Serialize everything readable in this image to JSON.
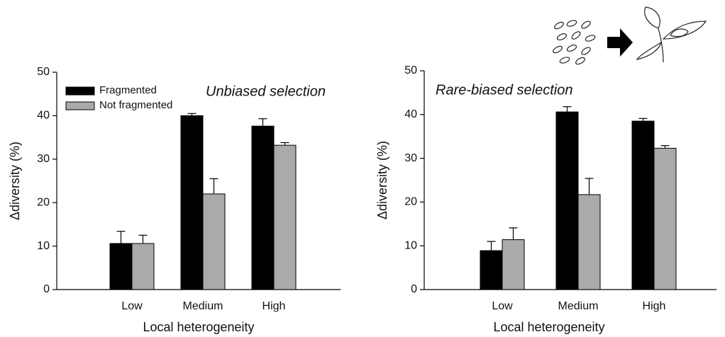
{
  "chart_data": [
    {
      "type": "bar",
      "ylabel": "Δdiversity (%)",
      "xlabel": "Local heterogeneity",
      "annotation": "Unbiased selection",
      "categories": [
        "Low",
        "Medium",
        "High"
      ],
      "series": [
        {
          "name": "Fragmented",
          "color": "#000000",
          "values": [
            10.6,
            40,
            37.6
          ],
          "errors": [
            2.8,
            0.5,
            1.7
          ]
        },
        {
          "name": "Not fragmented",
          "color": "#aaaaaa",
          "values": [
            10.6,
            22,
            33.2
          ],
          "errors": [
            1.9,
            3.5,
            0.6
          ]
        }
      ],
      "ylim": [
        0,
        50
      ],
      "yticks": [
        0,
        10,
        20,
        30,
        40,
        50
      ],
      "legend": "upper left"
    },
    {
      "type": "bar",
      "ylabel": "Δdiversity (%)",
      "xlabel": "Local heterogeneity",
      "annotation": "Rare-biased selection",
      "categories": [
        "Low",
        "Medium",
        "High"
      ],
      "series": [
        {
          "color": "#000000",
          "values": [
            8.9,
            40.6,
            38.5
          ],
          "errors": [
            2.1,
            1.2,
            0.6
          ]
        },
        {
          "color": "#aaaaaa",
          "values": [
            11.4,
            21.7,
            32.3
          ],
          "errors": [
            2.7,
            3.7,
            0.6
          ]
        }
      ],
      "ylim": [
        0,
        50
      ],
      "yticks": [
        0,
        10,
        20,
        30,
        40,
        50
      ]
    }
  ]
}
